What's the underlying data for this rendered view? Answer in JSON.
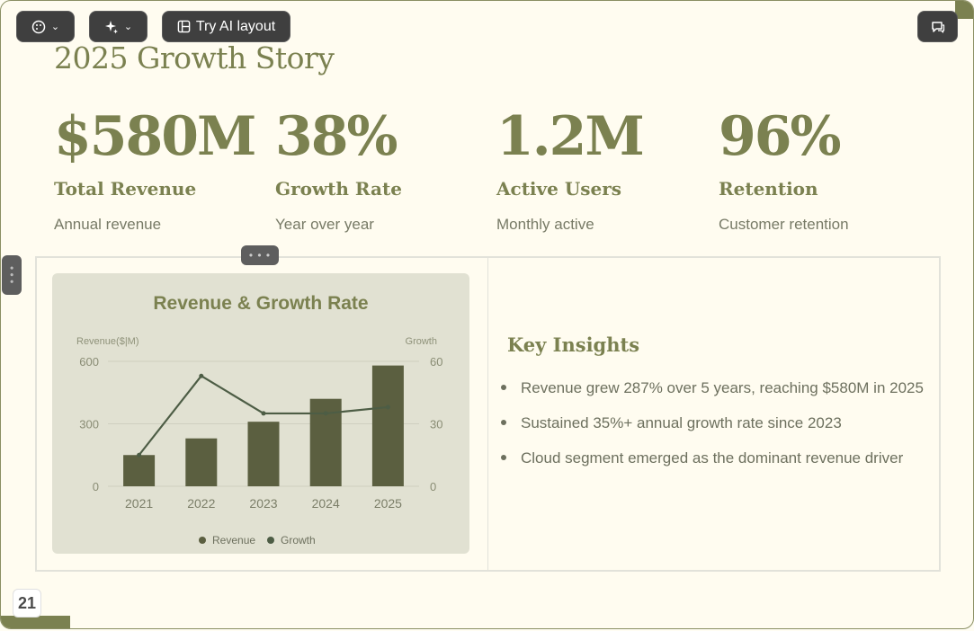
{
  "toolbar": {
    "theme_icon": "palette-icon",
    "ai_icon": "sparkle-icon",
    "layout_label": "Try AI layout",
    "layout_icon": "layout-icon",
    "comment_icon": "comment-icon"
  },
  "slide": {
    "title": "2025 Growth Story",
    "page_number": "21"
  },
  "stats": [
    {
      "value": "$580M",
      "label": "Total Revenue",
      "sub": "Annual revenue"
    },
    {
      "value": "38%",
      "label": "Growth Rate",
      "sub": "Year over year"
    },
    {
      "value": "1.2M",
      "label": "Active Users",
      "sub": "Monthly active"
    },
    {
      "value": "96%",
      "label": "Retention",
      "sub": "Customer retention"
    }
  ],
  "insights": {
    "title": "Key Insights",
    "items": [
      "Revenue grew 287% over 5 years, reaching $580M in 2025",
      "Sustained 35%+ annual growth rate since 2023",
      "Cloud segment emerged as the dominant revenue driver"
    ]
  },
  "colors": {
    "accent": "#7b8150",
    "bar": "#5b5f40",
    "line": "#4d5d45",
    "card": "#e1e1d2"
  },
  "chart_data": {
    "type": "bar",
    "title": "Revenue & Growth Rate",
    "categories": [
      "2021",
      "2022",
      "2023",
      "2024",
      "2025"
    ],
    "y_left_label": "Revenue($|M)",
    "y_right_label": "Growth",
    "y_left_ticks": [
      "600",
      "300",
      "0"
    ],
    "y_right_ticks": [
      "60",
      "30",
      "0"
    ],
    "ylim_left": [
      0,
      600
    ],
    "ylim_right": [
      0,
      60
    ],
    "series": [
      {
        "name": "Revenue",
        "type": "bar",
        "axis": "left",
        "values": [
          150,
          230,
          310,
          420,
          580
        ]
      },
      {
        "name": "Growth",
        "type": "line",
        "axis": "right",
        "values": [
          15,
          53,
          35,
          35,
          38
        ]
      }
    ],
    "legend": "bottom",
    "grid": true
  }
}
